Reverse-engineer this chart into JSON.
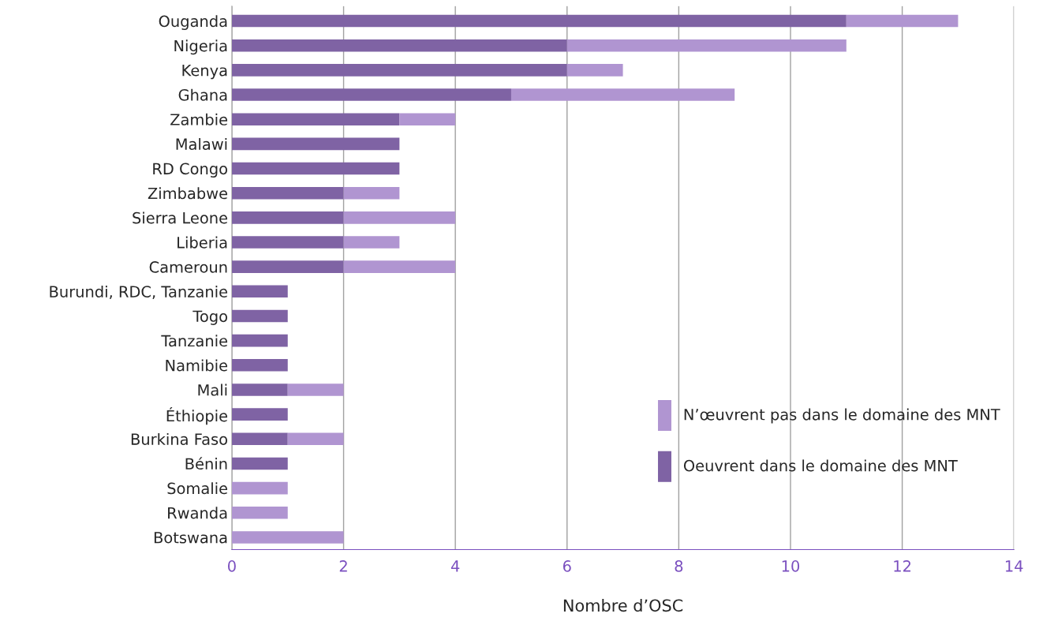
{
  "chart_data": {
    "type": "bar",
    "orientation": "horizontal",
    "stacked": true,
    "xlabel": "Nombre d’OSC",
    "categories": [
      "Ouganda",
      "Nigeria",
      "Kenya",
      "Ghana",
      "Zambie",
      "Malawi",
      "RD Congo",
      "Zimbabwe",
      "Sierra Leone",
      "Liberia",
      "Cameroun",
      "Burundi, RDC, Tanzanie",
      "Togo",
      "Tanzanie",
      "Namibie",
      "Mali",
      "Éthiopie",
      "Burkina Faso",
      "Bénin",
      "Somalie",
      "Rwanda",
      "Botswana"
    ],
    "series": [
      {
        "name": "Oeuvrent dans le domaine des MNT",
        "color": "#7f63a4",
        "values": [
          11,
          6,
          6,
          5,
          3,
          3,
          3,
          2,
          2,
          2,
          2,
          1,
          1,
          1,
          1,
          1,
          1,
          1,
          1,
          0,
          0,
          0
        ]
      },
      {
        "name": "N’œuvrent pas dans le domaine des MNT",
        "color": "#b095d1",
        "values": [
          2,
          5,
          1,
          4,
          1,
          0,
          0,
          1,
          2,
          1,
          2,
          0,
          0,
          0,
          0,
          1,
          0,
          1,
          0,
          1,
          1,
          2
        ]
      }
    ],
    "xlim": [
      0,
      14
    ],
    "xticks": [
      0,
      2,
      4,
      6,
      8,
      10,
      12,
      14
    ],
    "grid": "x",
    "legend": "bottom right"
  }
}
